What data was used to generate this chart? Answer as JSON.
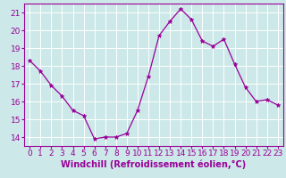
{
  "x": [
    0,
    1,
    2,
    3,
    4,
    5,
    6,
    7,
    8,
    9,
    10,
    11,
    12,
    13,
    14,
    15,
    16,
    17,
    18,
    19,
    20,
    21,
    22,
    23
  ],
  "y": [
    18.3,
    17.7,
    16.9,
    16.3,
    15.5,
    15.2,
    13.9,
    14.0,
    14.0,
    14.2,
    15.5,
    17.4,
    19.7,
    20.5,
    21.2,
    20.6,
    19.4,
    19.1,
    19.5,
    18.1,
    16.8,
    16.0,
    16.1,
    15.8
  ],
  "line_color": "#990099",
  "marker": "*",
  "marker_size": 3.5,
  "bg_color": "#cce8e8",
  "grid_color": "#ffffff",
  "xlabel": "Windchill (Refroidissement éolien,°C)",
  "xlabel_color": "#990099",
  "tick_color": "#990099",
  "ylim": [
    13.5,
    21.5
  ],
  "xlim": [
    -0.5,
    23.5
  ],
  "yticks": [
    14,
    15,
    16,
    17,
    18,
    19,
    20,
    21
  ],
  "xticks": [
    0,
    1,
    2,
    3,
    4,
    5,
    6,
    7,
    8,
    9,
    10,
    11,
    12,
    13,
    14,
    15,
    16,
    17,
    18,
    19,
    20,
    21,
    22,
    23
  ],
  "spine_color": "#990099",
  "tick_fontsize": 6.5,
  "xlabel_fontsize": 7.0
}
